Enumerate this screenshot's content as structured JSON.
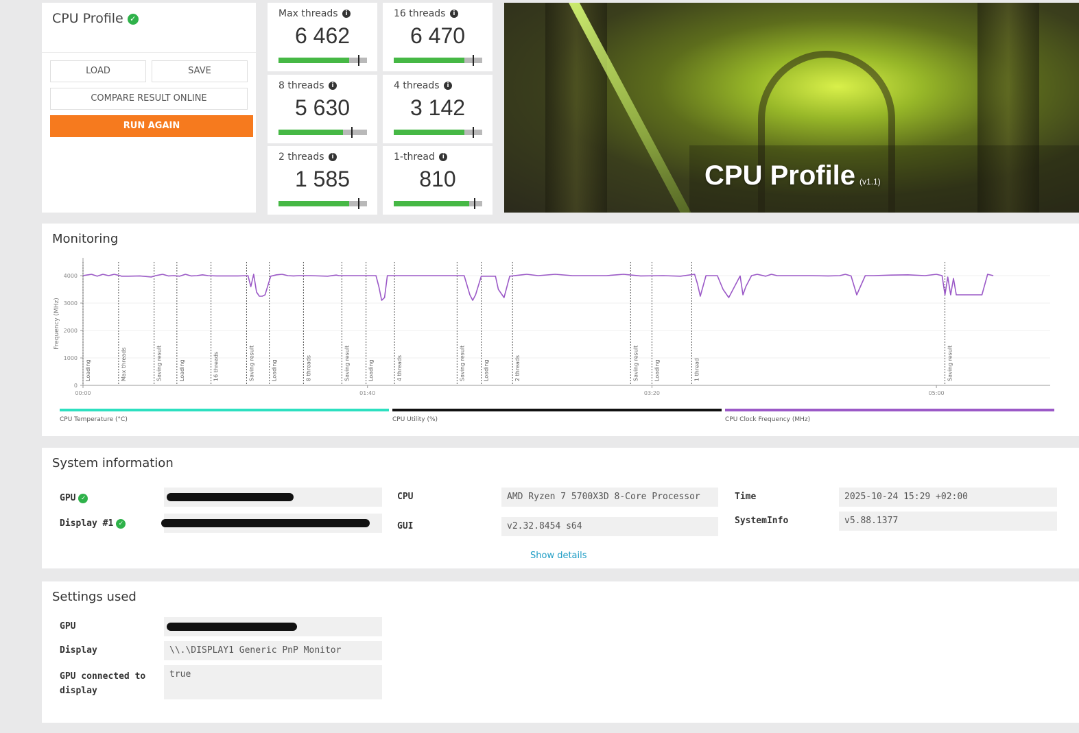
{
  "profile": {
    "title": "CPU Profile",
    "load_label": "LOAD",
    "save_label": "SAVE",
    "compare_label": "COMPARE RESULT ONLINE",
    "run_again_label": "RUN AGAIN"
  },
  "scores": [
    {
      "label": "Max threads",
      "value": "6 462",
      "fill": 0.8,
      "mark": 0.9
    },
    {
      "label": "16 threads",
      "value": "6 470",
      "fill": 0.8,
      "mark": 0.89
    },
    {
      "label": "8 threads",
      "value": "5 630",
      "fill": 0.73,
      "mark": 0.82
    },
    {
      "label": "4 threads",
      "value": "3 142",
      "fill": 0.8,
      "mark": 0.89
    },
    {
      "label": "2 threads",
      "value": "1 585",
      "fill": 0.8,
      "mark": 0.9
    },
    {
      "label": "1-thread",
      "value": "810",
      "fill": 0.85,
      "mark": 0.91
    }
  ],
  "hero": {
    "title": "CPU Profile",
    "version": "(v1.1)"
  },
  "monitoring": {
    "title": "Monitoring"
  },
  "chart_data": {
    "type": "line",
    "ylabel": "Frequency (MHz)",
    "yticks": [
      0,
      1000,
      2000,
      3000,
      4000
    ],
    "ylim": [
      0,
      4500
    ],
    "xticks": [
      "00:00",
      "01:40",
      "03:20",
      "05:00"
    ],
    "xlim": [
      0,
      340
    ],
    "grid": true,
    "series": [
      {
        "name": "CPU Clock Frequency (MHz)",
        "color": "#9b59c7",
        "x": [
          0,
          3,
          5,
          7,
          9,
          11,
          13,
          13.5,
          16,
          20,
          24,
          25.5,
          28,
          30,
          32,
          34,
          36,
          38,
          40,
          42,
          44,
          47,
          51,
          54.5,
          58,
          59,
          60,
          61,
          62,
          63,
          64,
          66,
          68,
          70,
          72,
          74,
          76,
          80,
          86,
          89,
          90,
          93,
          96,
          98,
          103,
          104,
          105,
          106,
          107,
          109,
          112,
          120,
          127,
          134,
          136,
          137,
          138,
          140,
          142,
          145,
          146,
          148,
          150,
          156,
          160,
          166,
          172,
          178,
          184,
          190,
          196,
          204,
          210,
          215,
          216,
          217,
          219,
          223,
          225,
          227,
          231,
          232,
          233,
          235,
          237,
          240,
          242,
          244,
          250,
          256,
          262,
          266,
          268,
          270,
          272,
          275,
          278,
          284,
          290,
          296,
          300,
          302,
          303,
          304,
          305,
          306,
          307,
          310,
          315,
          316,
          318,
          320
        ],
        "y": [
          4000,
          4050,
          3980,
          4050,
          4000,
          4050,
          4000,
          3980,
          3980,
          3990,
          3950,
          4000,
          4050,
          3990,
          4000,
          3980,
          4050,
          3990,
          4000,
          4030,
          4000,
          3990,
          3990,
          3990,
          4000,
          3600,
          4050,
          3400,
          3250,
          3250,
          3300,
          3980,
          4030,
          4050,
          4000,
          3990,
          4000,
          4000,
          3980,
          4020,
          4000,
          4000,
          4000,
          4000,
          4000,
          3600,
          3100,
          3200,
          4000,
          4000,
          4000,
          4000,
          4000,
          4000,
          3300,
          3100,
          3300,
          3980,
          3980,
          3980,
          3500,
          3200,
          3980,
          4050,
          4000,
          4050,
          4000,
          4000,
          4000,
          4050,
          3990,
          4000,
          3980,
          4050,
          3700,
          3250,
          4000,
          4000,
          3500,
          3200,
          3990,
          3300,
          3600,
          4000,
          4050,
          3980,
          4050,
          4000,
          4000,
          4000,
          3990,
          4000,
          4050,
          3990,
          3300,
          4000,
          4000,
          4020,
          4030,
          4000,
          4050,
          4000,
          3300,
          3950,
          3300,
          3900,
          3300,
          3300,
          3300,
          3300,
          4050,
          4000
        ]
      }
    ],
    "phases": [
      {
        "t": 0,
        "label": "Loading"
      },
      {
        "t": 12.5,
        "label": "Max threads"
      },
      {
        "t": 25,
        "label": "Saving result"
      },
      {
        "t": 33,
        "label": "Loading"
      },
      {
        "t": 45,
        "label": "16 threads"
      },
      {
        "t": 57.5,
        "label": "Saving result"
      },
      {
        "t": 65.5,
        "label": "Loading"
      },
      {
        "t": 77.5,
        "label": "8 threads"
      },
      {
        "t": 91,
        "label": "Saving result"
      },
      {
        "t": 99.5,
        "label": "Loading"
      },
      {
        "t": 109.5,
        "label": "4 threads"
      },
      {
        "t": 131.5,
        "label": "Saving result"
      },
      {
        "t": 140,
        "label": "Loading"
      },
      {
        "t": 151,
        "label": "2 threads"
      },
      {
        "t": 192.5,
        "label": "Saving result"
      },
      {
        "t": 200,
        "label": "Loading"
      },
      {
        "t": 214,
        "label": "1 thread"
      },
      {
        "t": 303,
        "label": "Saving result"
      }
    ],
    "legend": [
      {
        "label": "CPU Temperature (°C)",
        "color": "#2de0c0"
      },
      {
        "label": "CPU Utility (%)",
        "color": "#111111"
      },
      {
        "label": "CPU Clock Frequency (MHz)",
        "color": "#9b59c7"
      }
    ]
  },
  "sysinfo": {
    "title": "System information",
    "gpu_label": "GPU",
    "display_label": "Display #1",
    "cpu_label": "CPU",
    "cpu_value": "AMD Ryzen 7 5700X3D 8-Core Processor",
    "gui_label": "GUI",
    "gui_value": "v2.32.8454 s64",
    "time_label": "Time",
    "time_value": "2025-10-24 15:29 +02:00",
    "systeminfo_label": "SystemInfo",
    "systeminfo_value": "v5.88.1377",
    "show_details": "Show details"
  },
  "settings": {
    "title": "Settings used",
    "gpu_label": "GPU",
    "display_label": "Display",
    "display_value": "\\\\.\\DISPLAY1 Generic PnP Monitor",
    "gpu_connected_label": "GPU connected to display",
    "gpu_connected_value": "true"
  }
}
